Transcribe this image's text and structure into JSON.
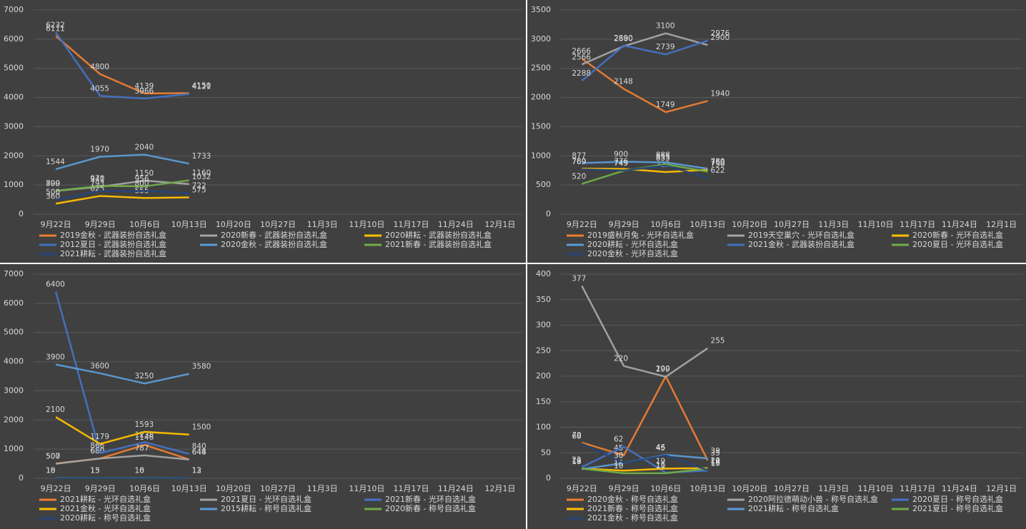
{
  "chart_data": [
    {
      "type": "line",
      "grid": true,
      "categories": [
        "9月22日",
        "9月29日",
        "10月6日",
        "10月13日",
        "10月20日",
        "10月27日",
        "11月3日",
        "11月10日",
        "11月17日",
        "11月24日",
        "12月1日"
      ],
      "ylim": [
        0,
        7000
      ],
      "yticks": [
        0,
        1000,
        2000,
        3000,
        4000,
        5000,
        6000,
        7000
      ],
      "series": [
        {
          "name": "2019金秋 - 武器装扮自选礼盒",
          "color": "#ed7d31",
          "values": [
            6111,
            4800,
            4139,
            4150,
            null,
            null,
            null,
            null,
            null,
            null,
            null
          ]
        },
        {
          "name": "2020新春 - 武器装扮自选礼盒",
          "color": "#a5a5a5",
          "values": [
            799,
            941,
            1150,
            1032,
            null,
            null,
            null,
            null,
            null,
            null,
            null
          ]
        },
        {
          "name": "2020耕耘 - 武器装扮自选礼盒",
          "color": "#ffc000",
          "values": [
            360,
            625,
            555,
            575,
            null,
            null,
            null,
            null,
            null,
            null,
            null
          ]
        },
        {
          "name": "2012夏日 - 武器装扮自选礼盒",
          "color": "#4472c4",
          "values": [
            6232,
            4055,
            3966,
            4121,
            null,
            null,
            null,
            null,
            null,
            null,
            null
          ]
        },
        {
          "name": "2020金秋 - 武器装扮自选礼盒",
          "color": "#5b9bd5",
          "values": [
            1544,
            1970,
            2040,
            1733,
            null,
            null,
            null,
            null,
            null,
            null,
            null
          ]
        },
        {
          "name": "2021新春 - 武器装扮自选礼盒",
          "color": "#70ad47",
          "values": [
            800,
            970,
            956,
            1160,
            null,
            null,
            null,
            null,
            null,
            null,
            null
          ]
        },
        {
          "name": "2021耕耘 - 武器装扮自选礼盒",
          "color": "#264478",
          "values": [
            500,
            793,
            800,
            722,
            null,
            null,
            null,
            null,
            null,
            null,
            null
          ]
        }
      ]
    },
    {
      "type": "line",
      "grid": true,
      "categories": [
        "9月22日",
        "9月29日",
        "10月6日",
        "10月13日",
        "10月20日",
        "10月27日",
        "11月3日",
        "11月10日",
        "11月17日",
        "11月24日",
        "12月1日"
      ],
      "ylim": [
        0,
        3500
      ],
      "yticks": [
        0,
        500,
        1000,
        1500,
        2000,
        2500,
        3000,
        3500
      ],
      "series": [
        {
          "name": "2019盛秋月兔 - 光环自选礼盒",
          "color": "#ed7d31",
          "values": [
            2666,
            2148,
            1749,
            1940,
            null,
            null,
            null,
            null,
            null,
            null,
            null
          ]
        },
        {
          "name": "2019天空巢穴 - 光环自选礼盒",
          "color": "#a5a5a5",
          "values": [
            2566,
            2880,
            3100,
            2900,
            null,
            null,
            null,
            null,
            null,
            null,
            null
          ]
        },
        {
          "name": "2020新春 - 光环自选礼盒",
          "color": "#ffc000",
          "values": [
            780,
            776,
            722,
            760,
            null,
            null,
            null,
            null,
            null,
            null,
            null
          ]
        },
        {
          "name": "2020耕耘 - 光环自选礼盒",
          "color": "#5b9bd5",
          "values": [
            877,
            900,
            888,
            780,
            null,
            null,
            null,
            null,
            null,
            null,
            null
          ]
        },
        {
          "name": "2021金秋 - 武器装扮自选礼盒",
          "color": "#4472c4",
          "values": [
            2288,
            2890,
            2739,
            2976,
            null,
            null,
            null,
            null,
            null,
            null,
            null
          ]
        },
        {
          "name": "2020夏日 - 光环自选礼盒",
          "color": "#70ad47",
          "values": [
            520,
            745,
            855,
            730,
            null,
            null,
            null,
            null,
            null,
            null,
            null
          ]
        },
        {
          "name": "2020金秋 - 光环自选礼盒",
          "color": "#264478",
          "values": [
            769,
            749,
            833,
            622,
            null,
            null,
            null,
            null,
            null,
            null,
            null
          ]
        }
      ]
    },
    {
      "type": "line",
      "grid": true,
      "categories": [
        "9月22日",
        "9月29日",
        "10月6日",
        "10月13日",
        "10月20日",
        "10月27日",
        "11月3日",
        "11月10日",
        "11月17日",
        "11月24日",
        "12月1日"
      ],
      "ylim": [
        0,
        7000
      ],
      "yticks": [
        0,
        1000,
        2000,
        3000,
        4000,
        5000,
        6000,
        7000
      ],
      "series": [
        {
          "name": "2021耕耘 - 光环自选礼盒",
          "color": "#ed7d31",
          "values": [
            507,
            680,
            1146,
            648,
            null,
            null,
            null,
            null,
            null,
            null,
            null
          ]
        },
        {
          "name": "2021夏日 - 光环自选礼盒",
          "color": "#a5a5a5",
          "values": [
            500,
            680,
            787,
            644,
            null,
            null,
            null,
            null,
            null,
            null,
            null
          ]
        },
        {
          "name": "2021新春 - 光环自选礼盒",
          "color": "#4472c4",
          "values": [
            6400,
            866,
            1238,
            840,
            null,
            null,
            null,
            null,
            null,
            null,
            null
          ]
        },
        {
          "name": "2021金秋 - 光环自选礼盒",
          "color": "#ffc000",
          "values": [
            2100,
            1179,
            1593,
            1500,
            null,
            null,
            null,
            null,
            null,
            null,
            null
          ]
        },
        {
          "name": "2015耕耘 - 称号自选礼盒",
          "color": "#5b9bd5",
          "values": [
            3900,
            3600,
            3250,
            3580,
            null,
            null,
            null,
            null,
            null,
            null,
            null
          ]
        },
        {
          "name": "2020新春 - 称号自选礼盒",
          "color": "#70ad47",
          "values": [
            18,
            15,
            16,
            13,
            null,
            null,
            null,
            null,
            null,
            null,
            null
          ]
        },
        {
          "name": "2020耕耘 - 称号自选礼盒",
          "color": "#264478",
          "values": [
            10,
            13,
            10,
            12,
            null,
            null,
            null,
            null,
            null,
            null,
            null
          ]
        }
      ]
    },
    {
      "type": "line",
      "grid": true,
      "categories": [
        "9月22日",
        "9月29日",
        "10月6日",
        "10月13日",
        "10月20日",
        "10月27日",
        "11月3日",
        "11月10日",
        "11月17日",
        "11月24日",
        "12月1日"
      ],
      "ylim": [
        0,
        400
      ],
      "yticks": [
        0,
        50,
        100,
        150,
        200,
        250,
        300,
        350,
        400
      ],
      "series": [
        {
          "name": "2020金秋 - 称号自选礼盒",
          "color": "#ed7d31",
          "values": [
            70,
            45,
            200,
            35,
            null,
            null,
            null,
            null,
            null,
            null,
            null
          ]
        },
        {
          "name": "2020阿拉德萌动小兽 - 称号自选礼盒",
          "color": "#a5a5a5",
          "values": [
            377,
            220,
            199,
            255,
            null,
            null,
            null,
            null,
            null,
            null,
            null
          ]
        },
        {
          "name": "2020夏日 - 称号自选礼盒",
          "color": "#4472c4",
          "values": [
            22,
            62,
            11,
            15,
            null,
            null,
            null,
            null,
            null,
            null,
            null
          ]
        },
        {
          "name": "2021新春 - 称号自选礼盒",
          "color": "#ffc000",
          "values": [
            19,
            15,
            19,
            20,
            null,
            null,
            null,
            null,
            null,
            null,
            null
          ]
        },
        {
          "name": "2021耕耘 - 称号自选礼盒",
          "color": "#5b9bd5",
          "values": [
            18,
            30,
            46,
            39,
            null,
            null,
            null,
            null,
            null,
            null,
            null
          ]
        },
        {
          "name": "2021夏日 - 称号自选礼盒",
          "color": "#70ad47",
          "values": [
            19,
            10,
            10,
            19,
            null,
            null,
            null,
            null,
            null,
            null,
            null
          ]
        },
        {
          "name": "2021金秋 - 称号自选礼盒",
          "color": "#264478",
          "values": [
            68,
            30,
            45,
            16,
            null,
            null,
            null,
            null,
            null,
            null,
            null
          ]
        }
      ]
    }
  ]
}
